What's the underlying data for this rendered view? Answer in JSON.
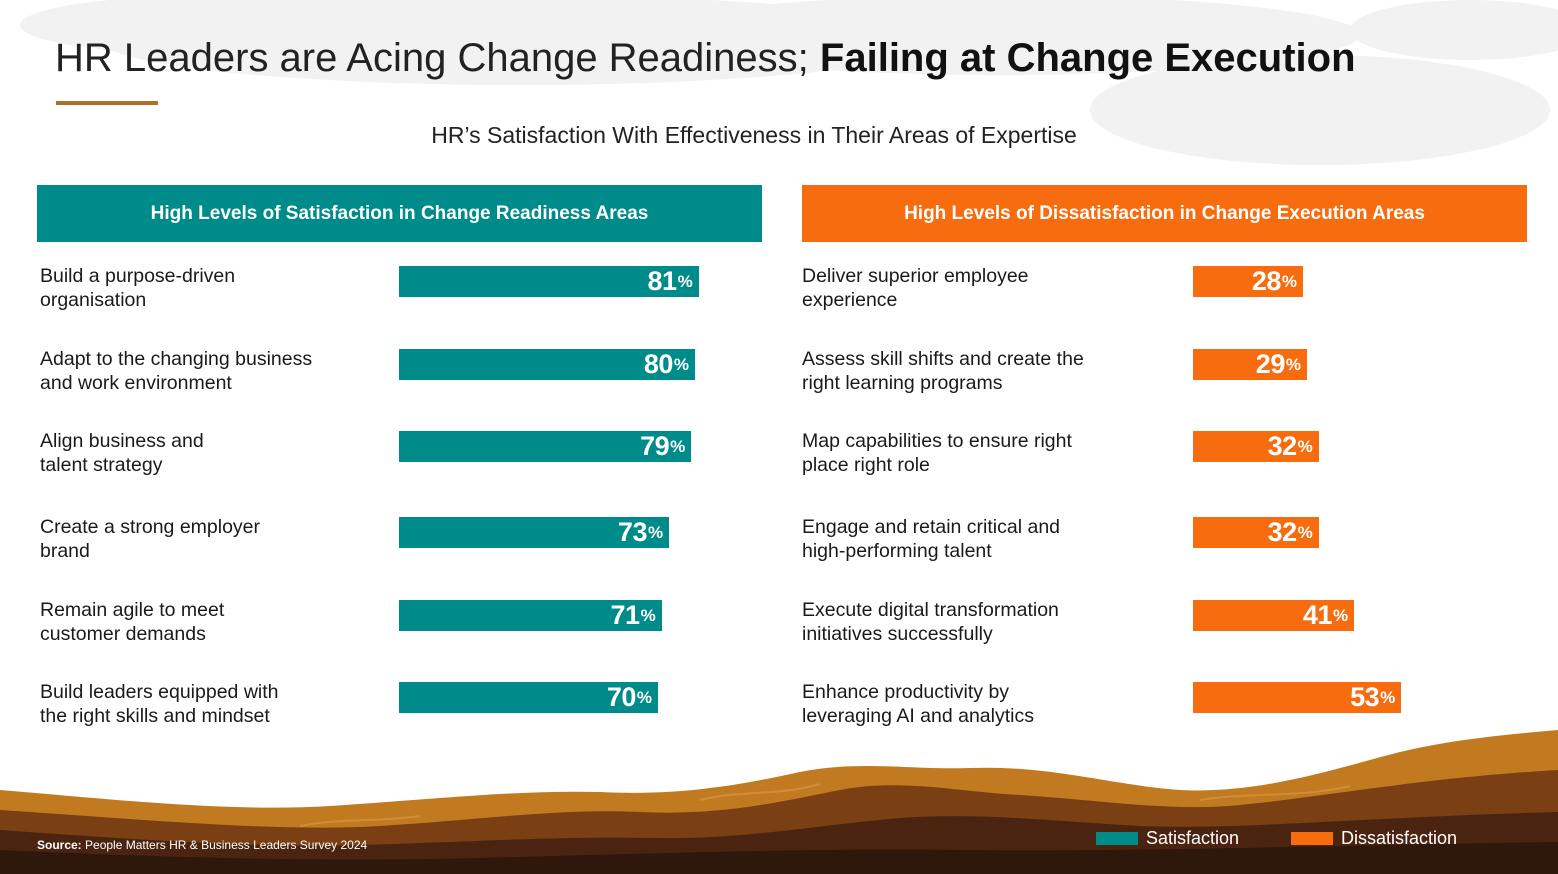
{
  "title": {
    "part1": "HR Leaders are Acing Change Readiness; ",
    "part2": "Failing at Change Execution"
  },
  "subtitle": "HR’s Satisfaction With Effectiveness in Their Areas of Expertise",
  "colors": {
    "satisfaction": "#008b8b",
    "dissatisfaction": "#f76c0f",
    "accent": "#a9712b"
  },
  "chart_data": [
    {
      "type": "bar",
      "orientation": "horizontal",
      "title": "High Levels of Satisfaction in Change Readiness Areas",
      "series_name": "Satisfaction",
      "unit": "%",
      "categories": [
        [
          "Build a purpose-driven",
          "organisation"
        ],
        [
          "Adapt to the changing business",
          "and work environment"
        ],
        [
          "Align business and",
          "talent strategy"
        ],
        [
          "Create a strong employer",
          "brand"
        ],
        [
          "Remain agile to meet",
          "customer demands"
        ],
        [
          "Build leaders equipped with",
          "the right skills and mindset"
        ]
      ],
      "values": [
        81,
        80,
        79,
        73,
        71,
        70
      ]
    },
    {
      "type": "bar",
      "orientation": "horizontal",
      "title": "High Levels of Dissatisfaction in Change Execution Areas",
      "series_name": "Dissatisfaction",
      "unit": "%",
      "categories": [
        [
          "Deliver superior employee",
          "experience"
        ],
        [
          "Assess skill shifts and create the",
          "right learning programs"
        ],
        [
          "Map capabilities to ensure right",
          "place right role"
        ],
        [
          "Engage and retain critical and",
          "high-performing talent"
        ],
        [
          "Execute digital transformation",
          "initiatives successfully"
        ],
        [
          "Enhance productivity by",
          "leveraging AI and analytics"
        ]
      ],
      "values": [
        28,
        29,
        32,
        32,
        41,
        53
      ]
    }
  ],
  "legend": {
    "items": [
      "Satisfaction",
      "Dissatisfaction"
    ]
  },
  "source": {
    "label": "Source:",
    "text": " People Matters HR & Business Leaders Survey 2024"
  }
}
